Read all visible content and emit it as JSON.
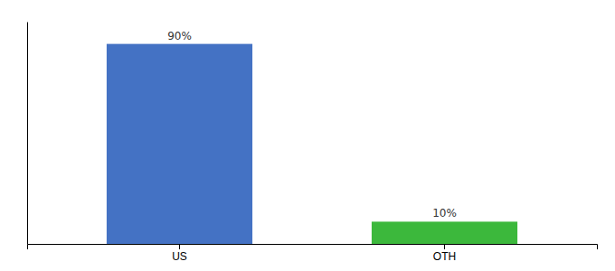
{
  "chart_data": {
    "type": "bar",
    "categories": [
      "US",
      "OTH"
    ],
    "values": [
      90,
      10
    ],
    "value_labels": [
      "90%",
      "10%"
    ],
    "data_labels": true,
    "colors": [
      "#4472c4",
      "#3cb83c"
    ],
    "ylim": [
      0,
      100
    ],
    "tick_labels": "x"
  }
}
